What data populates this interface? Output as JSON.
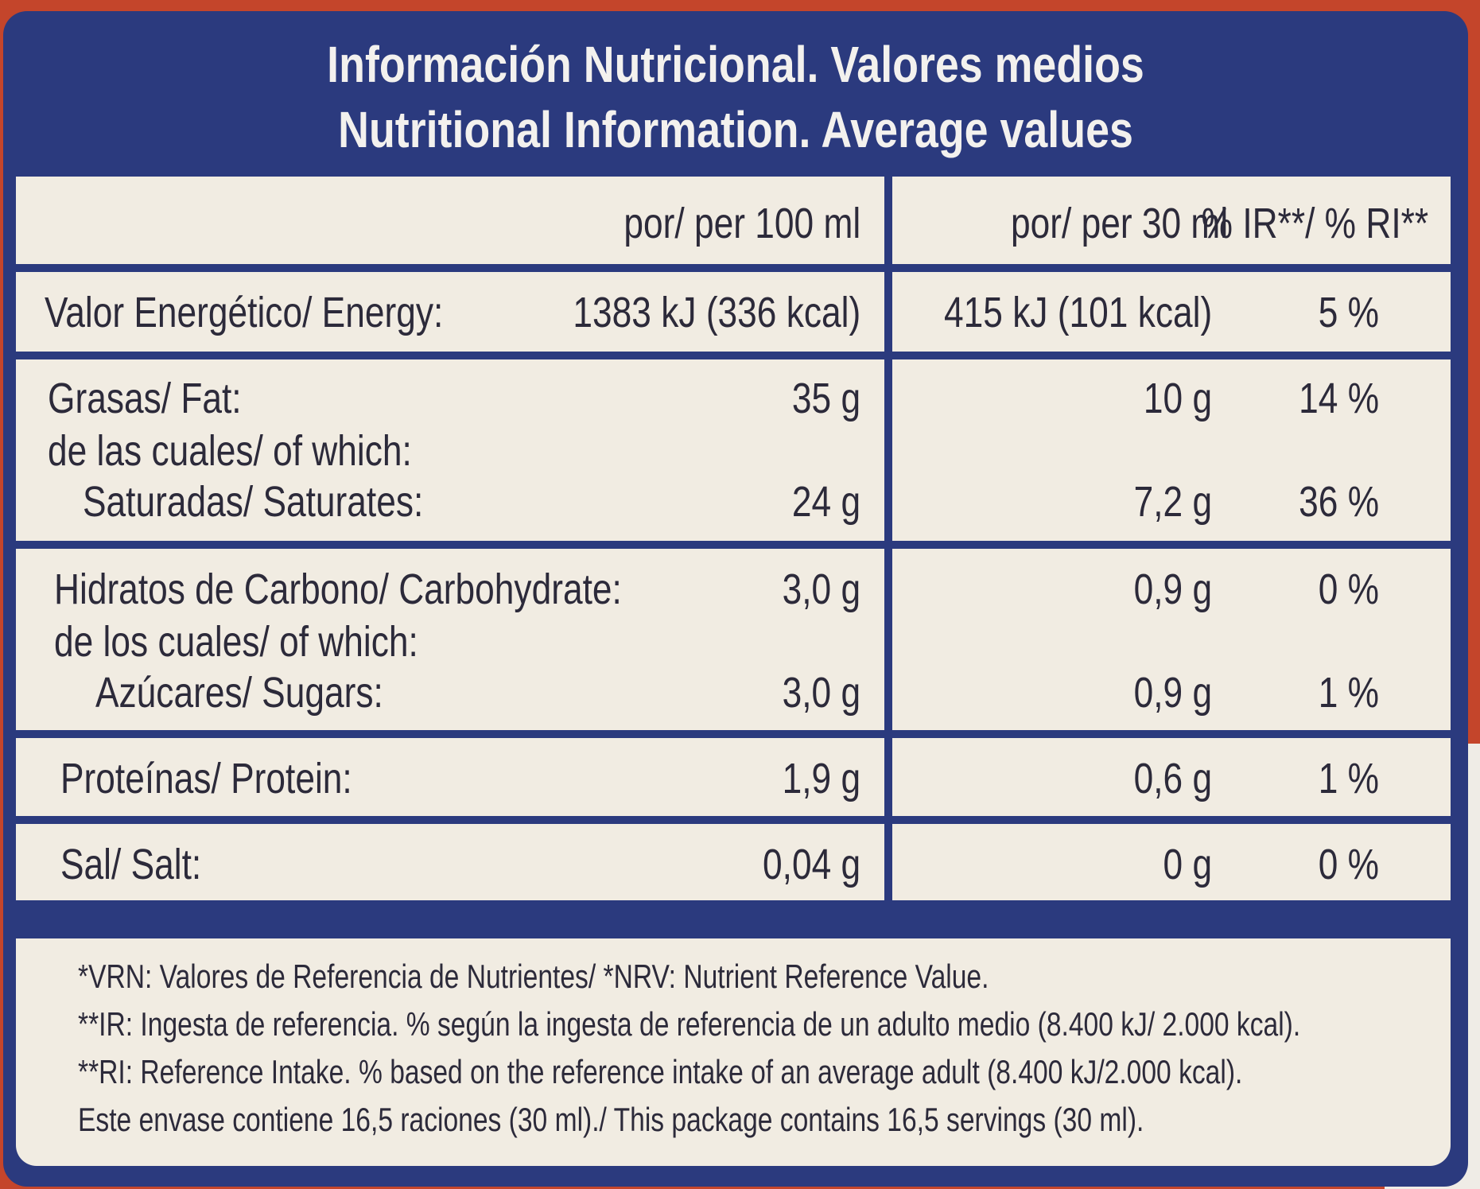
{
  "header": {
    "title_es": "Información Nutricional. Valores medios",
    "title_en": "Nutritional Information. Average values"
  },
  "columns": {
    "per100": "por/ per 100 ml",
    "per30": "por/ per 30 ml",
    "pct": "% IR**/ % RI**"
  },
  "rows": [
    {
      "label": "Valor Energético/ Energy:",
      "v100": "1383 kJ (336 kcal)",
      "v30": "415 kJ (101 kcal)",
      "pct": "5 %"
    },
    {
      "label": "Grasas/ Fat:",
      "v100": "35 g",
      "v30": "10 g",
      "pct": "14 %",
      "sub_label": "de las cuales/ of which:",
      "sub_item": "Saturadas/ Saturates:",
      "sub_v100": "24 g",
      "sub_v30": "7,2 g",
      "sub_pct": "36 %"
    },
    {
      "label": "Hidratos de Carbono/ Carbohydrate:",
      "v100": "3,0 g",
      "v30": "0,9 g",
      "pct": "0 %",
      "sub_label": "de los cuales/ of which:",
      "sub_item": "Azúcares/ Sugars:",
      "sub_v100": "3,0 g",
      "sub_v30": "0,9 g",
      "sub_pct": "1 %"
    },
    {
      "label": "Proteínas/ Protein:",
      "v100": "1,9 g",
      "v30": "0,6 g",
      "pct": "1 %"
    },
    {
      "label": "Sal/ Salt:",
      "v100": "0,04 g",
      "v30": "0 g",
      "pct": "0 %"
    }
  ],
  "footer": [
    "*VRN: Valores de Referencia de Nutrientes/ *NRV: Nutrient Reference Value.",
    "**IR: Ingesta de referencia. % según la ingesta de referencia de un adulto medio (8.400 kJ/ 2.000 kcal).",
    "**RI: Reference Intake. % based on the reference intake of an average adult (8.400 kJ/2.000 kcal).",
    "Este envase contiene 16,5 raciones (30 ml)./ This package contains 16,5 servings (30 ml)."
  ]
}
